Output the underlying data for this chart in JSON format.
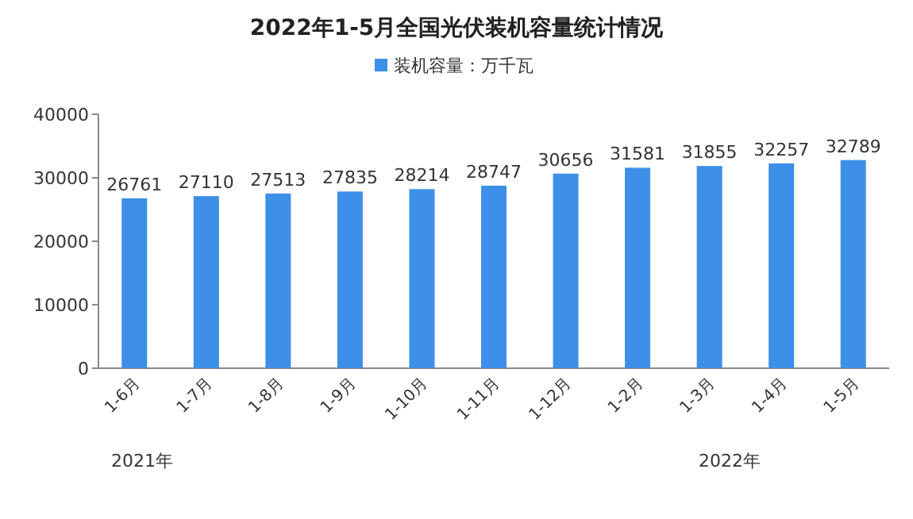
{
  "chart_data": {
    "type": "bar",
    "title": "2022年1-5月全国光伏装机容量统计情况",
    "categories": [
      "1-6月",
      "1-7月",
      "1-8月",
      "1-9月",
      "1-10月",
      "1-11月",
      "1-12月",
      "1-2月",
      "1-3月",
      "1-4月",
      "1-5月"
    ],
    "series": [
      {
        "name": "装机容量：万千瓦",
        "color": "#3d8fe8",
        "values": [
          26761,
          27110,
          27513,
          27835,
          28214,
          28747,
          30656,
          31581,
          31855,
          32257,
          32789
        ]
      }
    ],
    "ylim": [
      0,
      40000
    ],
    "yticks": [
      0,
      10000,
      20000,
      30000,
      40000
    ],
    "data_labels": true,
    "legend": "top",
    "grid": false,
    "annotations": [
      "2021年",
      "2022年"
    ]
  }
}
